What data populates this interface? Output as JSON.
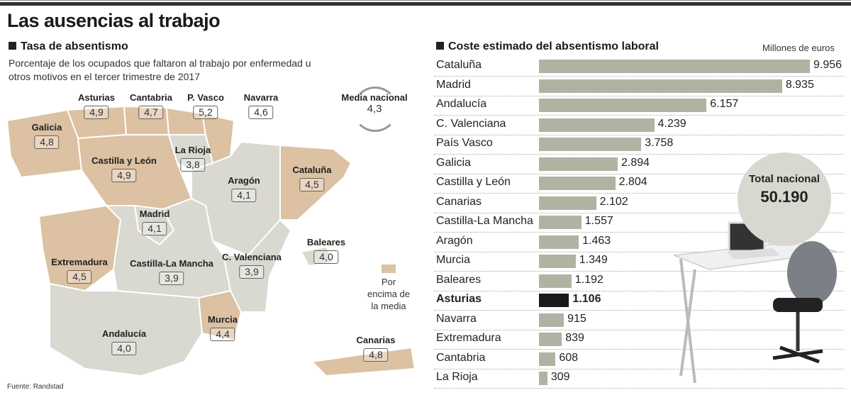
{
  "title": "Las ausencias al trabajo",
  "left": {
    "heading": "Tasa de absentismo",
    "subtitle": "Porcentaje de los ocupados que faltaron al trabajo por enfermedad u otros motivos en el tercer trimestre de 2017",
    "media_label": "Media nacional",
    "media_value": "4,3",
    "legend_label": "Por encima de la media",
    "source": "Fuente: Randstad",
    "colors": {
      "above": "#dcc1a2",
      "below": "#d9d9d2"
    },
    "regions": [
      {
        "name": "Asturias",
        "value": "4,9",
        "above": true
      },
      {
        "name": "Cantabria",
        "value": "4,7",
        "above": true
      },
      {
        "name": "P. Vasco",
        "value": "5,2",
        "above": true
      },
      {
        "name": "Navarra",
        "value": "4,6",
        "above": true
      },
      {
        "name": "Galicia",
        "value": "4,8",
        "above": true
      },
      {
        "name": "Castilla y León",
        "value": "4,9",
        "above": true
      },
      {
        "name": "La Rioja",
        "value": "3,8",
        "above": false
      },
      {
        "name": "Aragón",
        "value": "4,1",
        "above": false
      },
      {
        "name": "Cataluña",
        "value": "4,5",
        "above": true
      },
      {
        "name": "Madrid",
        "value": "4,1",
        "above": false
      },
      {
        "name": "C. Valenciana",
        "value": "3,9",
        "above": false
      },
      {
        "name": "Extremadura",
        "value": "4,5",
        "above": true
      },
      {
        "name": "Castilla-La Mancha",
        "value": "3,9",
        "above": false
      },
      {
        "name": "Baleares",
        "value": "4,0",
        "above": false
      },
      {
        "name": "Murcia",
        "value": "4,4",
        "above": true
      },
      {
        "name": "Andalucía",
        "value": "4,0",
        "above": false
      },
      {
        "name": "Canarias",
        "value": "4,8",
        "above": true
      }
    ]
  },
  "chart_data": {
    "type": "bar",
    "orientation": "horizontal",
    "title": "Coste estimado del absentismo laboral",
    "unit": "Millones de euros",
    "categories": [
      "Cataluña",
      "Madrid",
      "Andalucía",
      "C. Valenciana",
      "País Vasco",
      "Galicia",
      "Castilla y León",
      "Canarias",
      "Castilla-La Mancha",
      "Aragón",
      "Murcia",
      "Baleares",
      "Asturias",
      "Navarra",
      "Extremadura",
      "Cantabria",
      "La Rioja"
    ],
    "values": [
      9956,
      8935,
      6157,
      4239,
      3758,
      2894,
      2804,
      2102,
      1557,
      1463,
      1349,
      1192,
      1106,
      915,
      839,
      608,
      309
    ],
    "labels": [
      "9.956",
      "8.935",
      "6.157",
      "4.239",
      "3.758",
      "2.894",
      "2.804",
      "2.102",
      "1.557",
      "1.463",
      "1.349",
      "1.192",
      "1.106",
      "915",
      "839",
      "608",
      "309"
    ],
    "highlight": "Asturias",
    "colors": {
      "bar": "#b2b2a3",
      "highlight": "#1a1a1a"
    },
    "total_label": "Total nacional",
    "total_value": "50.190"
  }
}
